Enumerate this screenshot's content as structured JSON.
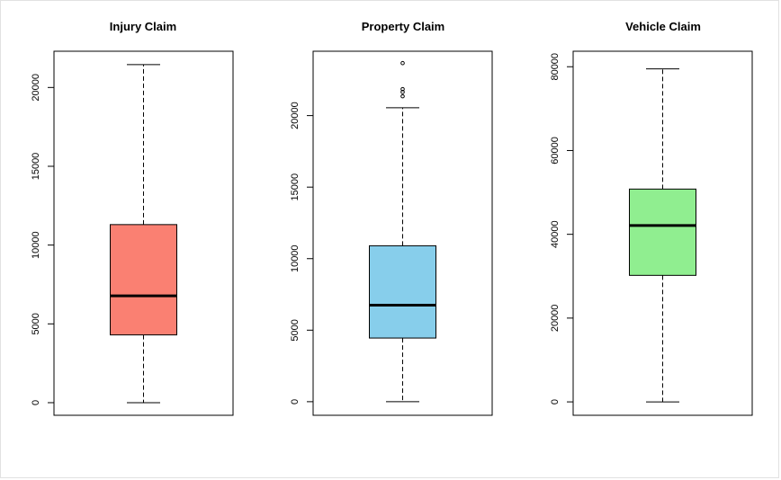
{
  "chart_data": [
    {
      "type": "boxplot",
      "title": "Injury Claim",
      "color": "#fa8072",
      "ylim": [
        -800,
        22300
      ],
      "yticks": [
        0,
        5000,
        10000,
        15000,
        20000
      ],
      "ytick_labels": [
        "0",
        "5000",
        "10000",
        "15000",
        "20000"
      ],
      "stats": {
        "min": 0,
        "q1": 4300,
        "median": 6780,
        "q3": 11300,
        "max": 21450
      },
      "outliers": []
    },
    {
      "type": "boxplot",
      "title": "Property Claim",
      "color": "#87ceeb",
      "ylim": [
        -950,
        24500
      ],
      "yticks": [
        0,
        5000,
        10000,
        15000,
        20000
      ],
      "ytick_labels": [
        "0",
        "5000",
        "10000",
        "15000",
        "20000"
      ],
      "stats": {
        "min": 0,
        "q1": 4450,
        "median": 6750,
        "q3": 10900,
        "max": 20550
      },
      "outliers": [
        21350,
        21650,
        21850,
        23670
      ]
    },
    {
      "type": "boxplot",
      "title": "Vehicle Claim",
      "color": "#90ee90",
      "ylim": [
        -3200,
        83700
      ],
      "yticks": [
        0,
        20000,
        40000,
        60000,
        80000
      ],
      "ytick_labels": [
        "0",
        "20000",
        "40000",
        "60000",
        "80000"
      ],
      "stats": {
        "min": 0,
        "q1": 30200,
        "median": 42100,
        "q3": 50800,
        "max": 79500
      },
      "outliers": []
    }
  ]
}
